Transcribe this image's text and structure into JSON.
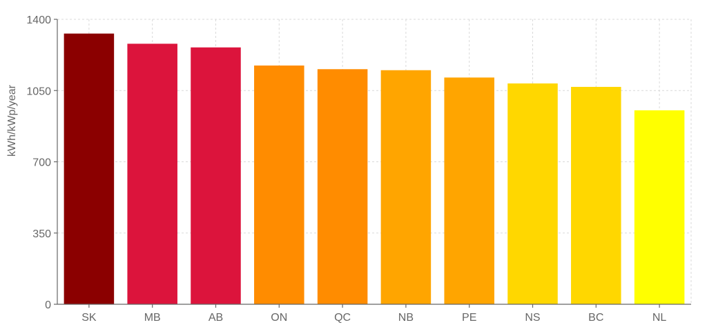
{
  "chart_data": {
    "type": "bar",
    "categories": [
      "SK",
      "MB",
      "AB",
      "ON",
      "QC",
      "NB",
      "PE",
      "NS",
      "BC",
      "NL"
    ],
    "values": [
      1330,
      1280,
      1262,
      1173,
      1155,
      1150,
      1114,
      1085,
      1068,
      953
    ],
    "colors": [
      "#8b0000",
      "#dc143c",
      "#dc143c",
      "#ff8c00",
      "#ff8c00",
      "#ffa500",
      "#ffa500",
      "#ffd700",
      "#ffd700",
      "#ffff00"
    ],
    "title": "",
    "xlabel": "",
    "ylabel": "kWh/kWp/year",
    "ylim": [
      0,
      1400
    ],
    "yticks": [
      0,
      350,
      700,
      1050,
      1400
    ],
    "grid": true,
    "legend": "none"
  }
}
